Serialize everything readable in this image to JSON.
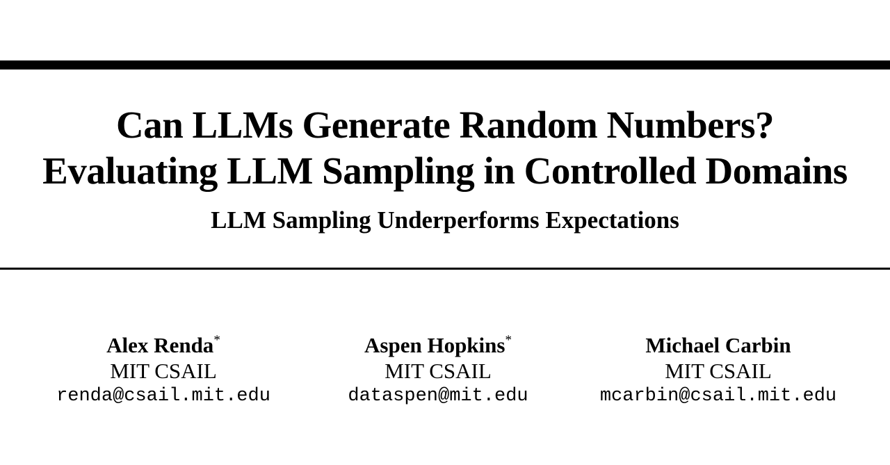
{
  "paper": {
    "title_line1": "Can LLMs Generate Random Numbers?",
    "title_line2": "Evaluating LLM Sampling in Controlled Domains",
    "subtitle": "LLM Sampling Underperforms Expectations",
    "authors": [
      {
        "name": "Alex Renda",
        "mark": "*",
        "affiliation": "MIT CSAIL",
        "email": "renda@csail.mit.edu"
      },
      {
        "name": "Aspen Hopkins",
        "mark": "*",
        "affiliation": "MIT CSAIL",
        "email": "dataspen@mit.edu"
      },
      {
        "name": "Michael Carbin",
        "mark": "",
        "affiliation": "MIT CSAIL",
        "email": "mcarbin@csail.mit.edu"
      }
    ]
  }
}
